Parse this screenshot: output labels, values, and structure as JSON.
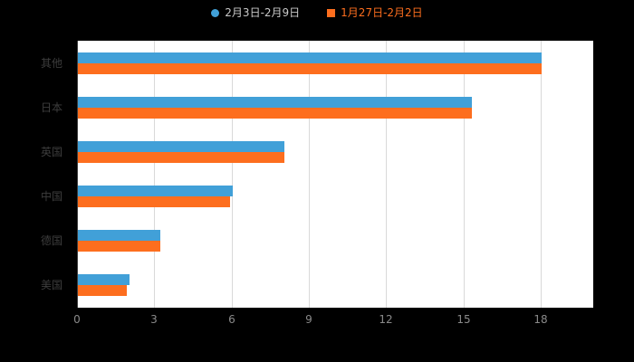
{
  "chart_data": {
    "type": "bar",
    "orientation": "horizontal",
    "title": "",
    "xlabel": "",
    "ylabel": "",
    "categories": [
      "其他",
      "日本",
      "英国",
      "中国",
      "德国",
      "美国"
    ],
    "series": [
      {
        "name": "2月3日-2月9日",
        "color": "#41a0d8",
        "label_color": "#c9c9c9",
        "marker": "circle",
        "values": [
          18,
          15.3,
          8,
          6,
          3.2,
          2
        ]
      },
      {
        "name": "1月27日-2月2日",
        "color": "#fd6e1e",
        "label_color": "#fd6e1e",
        "marker": "square",
        "values": [
          18,
          15.3,
          8,
          5.9,
          3.2,
          1.9
        ]
      }
    ],
    "xlim": [
      0,
      18
    ],
    "xticks": [
      0,
      3,
      6,
      9,
      12,
      15,
      18
    ],
    "grid": true,
    "legend_position": "top",
    "plot_background": "#ffffff",
    "page_background": "#000000"
  },
  "colors": {
    "grid": "#d9d9d9",
    "axis": "#3c3c3c",
    "tick_label": "#8a8a8a",
    "category_label": "#3d3d3d"
  }
}
